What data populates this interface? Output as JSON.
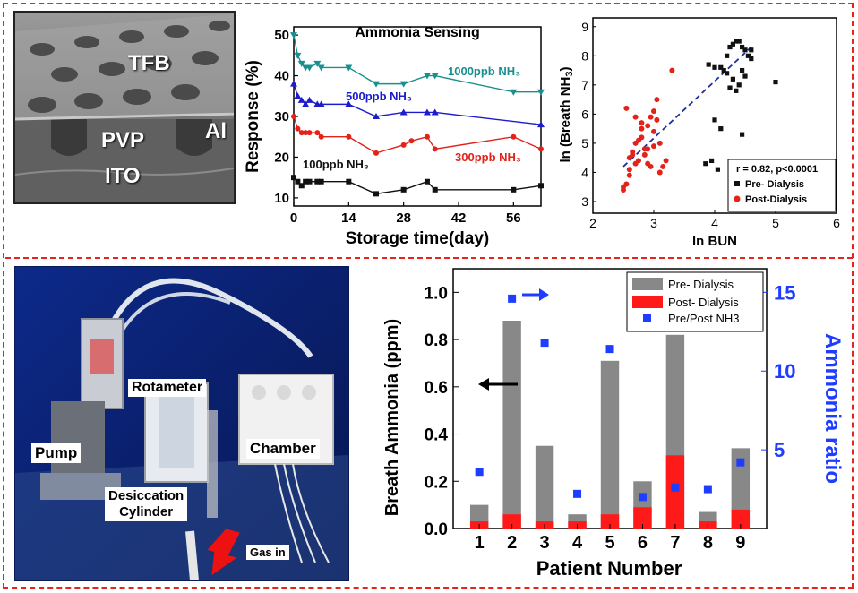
{
  "sem": {
    "labels": [
      "TFB",
      "PVP",
      "ITO",
      "Al"
    ]
  },
  "setup": {
    "labels": {
      "rotameter": "Rotameter",
      "pump": "Pump",
      "chamber": "Chamber",
      "desiccation": "Desiccation",
      "cylinder": "Cylinder",
      "gas_in": "Gas in"
    }
  },
  "chart_data": [
    {
      "type": "line",
      "title": "Ammonia Sensing",
      "xlabel": "Storage time(day)",
      "ylabel": "Response (%)",
      "xlim": [
        0,
        63
      ],
      "ylim": [
        8,
        52
      ],
      "xticks": [
        0,
        14,
        28,
        42,
        56
      ],
      "yticks": [
        10,
        20,
        30,
        40,
        50
      ],
      "series": [
        {
          "name": "1000ppb NH₃",
          "color": "#1a8f8f",
          "marker": "triangle-down",
          "x": [
            0,
            1,
            2,
            3,
            4,
            6,
            7,
            14,
            21,
            28,
            34,
            36,
            56,
            63
          ],
          "y": [
            50,
            45,
            43,
            42,
            42,
            43,
            42,
            42,
            38,
            38,
            40,
            40,
            36,
            36
          ]
        },
        {
          "name": "500ppb  NH₃",
          "color": "#1c1ccc",
          "marker": "triangle-up",
          "x": [
            0,
            1,
            2,
            3,
            4,
            6,
            7,
            14,
            21,
            28,
            34,
            36,
            63
          ],
          "y": [
            38,
            35,
            34,
            33,
            34,
            33,
            33,
            33,
            30,
            31,
            31,
            31,
            28
          ]
        },
        {
          "name": "300ppb  NH₃",
          "color": "#e32219",
          "marker": "circle",
          "x": [
            0,
            1,
            2,
            3,
            4,
            6,
            7,
            14,
            21,
            28,
            30,
            34,
            36,
            56,
            63
          ],
          "y": [
            30,
            27,
            26,
            26,
            26,
            26,
            25,
            25,
            21,
            23,
            24,
            25,
            22,
            25,
            22
          ]
        },
        {
          "name": "100ppb  NH₃",
          "color": "#111111",
          "marker": "square",
          "x": [
            0,
            1,
            2,
            3,
            4,
            6,
            7,
            14,
            21,
            28,
            34,
            36,
            56,
            63
          ],
          "y": [
            15,
            14,
            13,
            14,
            14,
            14,
            14,
            14,
            11,
            12,
            14,
            12,
            12,
            13
          ]
        }
      ],
      "label_colors": [
        "#1a8f8f",
        "#1c1ccc",
        "#e32219",
        "#111111"
      ]
    },
    {
      "type": "scatter",
      "xlabel": "ln BUN",
      "ylabel": "ln (Breath NH3)",
      "xlim": [
        2,
        6
      ],
      "ylim": [
        2.6,
        9.3
      ],
      "xticks": [
        2,
        3,
        4,
        5,
        6
      ],
      "yticks": [
        3,
        4,
        5,
        6,
        7,
        8,
        9
      ],
      "annotation": "r = 0.82, p<0.0001",
      "legend_position": "bottom-right",
      "fit_line": {
        "x": [
          2.5,
          4.6
        ],
        "y": [
          4.2,
          8.3
        ]
      },
      "series": [
        {
          "name": "Pre- Dialysis",
          "color": "#111111",
          "marker": "square",
          "x": [
            3.9,
            4.0,
            4.1,
            4.15,
            4.2,
            4.25,
            4.3,
            4.35,
            4.4,
            4.45,
            4.5,
            4.55,
            4.6,
            4.3,
            4.4,
            4.2,
            4.35,
            4.5,
            4.0,
            4.1,
            3.95,
            4.25,
            4.45,
            5.0,
            4.6,
            3.85,
            4.05,
            4.45
          ],
          "y": [
            7.7,
            7.6,
            7.6,
            7.5,
            8.0,
            8.3,
            8.4,
            8.5,
            8.5,
            8.3,
            8.2,
            8.0,
            7.9,
            7.2,
            7.0,
            7.4,
            6.8,
            7.3,
            5.8,
            5.5,
            4.4,
            6.9,
            7.5,
            7.1,
            8.2,
            4.3,
            4.1,
            5.3
          ]
        },
        {
          "name": "Post-Dialysis",
          "color": "#e32219",
          "marker": "circle",
          "x": [
            2.5,
            2.6,
            2.65,
            2.7,
            2.75,
            2.8,
            2.85,
            2.9,
            2.95,
            3.0,
            3.05,
            3.1,
            3.15,
            2.55,
            2.6,
            2.7,
            2.8,
            2.9,
            3.0,
            3.1,
            2.5,
            2.65,
            2.75,
            2.85,
            2.95,
            3.05,
            2.6,
            2.7,
            2.8,
            3.0,
            3.2,
            3.3,
            2.55,
            2.9
          ],
          "y": [
            3.5,
            4.1,
            4.6,
            5.0,
            4.4,
            5.2,
            4.8,
            5.6,
            5.9,
            5.4,
            6.5,
            5.0,
            4.2,
            6.2,
            4.5,
            5.9,
            5.7,
            4.3,
            4.9,
            4.0,
            3.4,
            4.7,
            5.1,
            4.6,
            4.2,
            5.8,
            3.9,
            4.3,
            5.5,
            6.1,
            4.4,
            7.5,
            3.6,
            4.8
          ]
        }
      ]
    },
    {
      "type": "bar",
      "xlabel": "Patient Number",
      "ylabel": "Breath Ammonia (ppm)",
      "y2label": "Ammonia ratio",
      "categories": [
        "1",
        "2",
        "3",
        "4",
        "5",
        "6",
        "7",
        "8",
        "9"
      ],
      "ylim": [
        0,
        1.1
      ],
      "yticks": [
        0.0,
        0.2,
        0.4,
        0.6,
        0.8,
        1.0
      ],
      "y2lim": [
        0,
        16.5
      ],
      "y2ticks": [
        5,
        10,
        15
      ],
      "legend_position": "top-right",
      "series": [
        {
          "name": "Pre- Dialysis",
          "color": "#888888",
          "values": [
            0.1,
            0.88,
            0.35,
            0.06,
            0.71,
            0.2,
            0.82,
            0.07,
            0.34
          ]
        },
        {
          "name": "Post- Dialysis",
          "color": "#ff1a1a",
          "values": [
            0.03,
            0.06,
            0.03,
            0.03,
            0.06,
            0.09,
            0.31,
            0.03,
            0.08
          ]
        },
        {
          "name": "Pre/Post NH3",
          "color": "#1f3dff",
          "axis": "right",
          "values": [
            3.6,
            14.6,
            11.8,
            2.2,
            11.4,
            2.0,
            2.6,
            2.5,
            4.2
          ]
        }
      ]
    }
  ]
}
